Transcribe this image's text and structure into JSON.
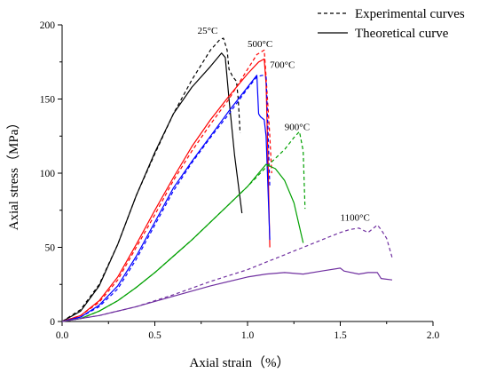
{
  "chart_data": {
    "type": "line",
    "xlabel": "Axial strain（%）",
    "ylabel": "Axial stress（MPa）",
    "xlim": [
      0,
      2.0
    ],
    "ylim": [
      0,
      200
    ],
    "xticks": [
      "0.0",
      "0.5",
      "1.0",
      "1.5",
      "2.0"
    ],
    "yticks": [
      "0",
      "50",
      "100",
      "150",
      "200"
    ],
    "legend_position": "top-right",
    "legend": [
      {
        "label": "Experimental curves",
        "style": "dashed"
      },
      {
        "label": "Theoretical curve",
        "style": "solid"
      }
    ],
    "series": [
      {
        "temperature": "25°C",
        "color": "#000000",
        "style": "dashed",
        "x": [
          0,
          0.1,
          0.2,
          0.3,
          0.4,
          0.5,
          0.6,
          0.7,
          0.8,
          0.85,
          0.87,
          0.89,
          0.9,
          0.92,
          0.94,
          0.95,
          0.96
        ],
        "y": [
          0,
          8,
          25,
          52,
          85,
          113,
          140,
          163,
          183,
          190,
          191,
          183,
          170,
          165,
          162,
          150,
          127
        ]
      },
      {
        "temperature": "25°C",
        "color": "#000000",
        "style": "solid",
        "x": [
          0,
          0.1,
          0.2,
          0.3,
          0.4,
          0.5,
          0.6,
          0.7,
          0.8,
          0.86,
          0.88,
          0.9,
          0.93,
          0.97
        ],
        "y": [
          0,
          7,
          24,
          52,
          85,
          114,
          140,
          158,
          172,
          181,
          178,
          150,
          112,
          73
        ]
      },
      {
        "temperature": "500°C",
        "color": "#ff0000",
        "style": "dashed",
        "x": [
          0,
          0.1,
          0.2,
          0.3,
          0.4,
          0.5,
          0.6,
          0.7,
          0.8,
          0.9,
          1.0,
          1.05,
          1.09,
          1.1,
          1.12,
          1.13
        ],
        "y": [
          0,
          4,
          13,
          28,
          50,
          72,
          95,
          115,
          133,
          150,
          170,
          180,
          183,
          165,
          125,
          100
        ]
      },
      {
        "temperature": "500°C",
        "color": "#ff0000",
        "style": "solid",
        "x": [
          0,
          0.1,
          0.2,
          0.3,
          0.4,
          0.5,
          0.6,
          0.7,
          0.8,
          0.9,
          1.0,
          1.06,
          1.09,
          1.1,
          1.11,
          1.12
        ],
        "y": [
          0,
          4,
          14,
          30,
          52,
          75,
          97,
          118,
          136,
          152,
          167,
          175,
          177,
          160,
          110,
          50
        ]
      },
      {
        "temperature": "700°C",
        "color": "#0000ff",
        "style": "dashed",
        "x": [
          0,
          0.1,
          0.2,
          0.3,
          0.4,
          0.5,
          0.6,
          0.7,
          0.8,
          0.9,
          1.0,
          1.05,
          1.08,
          1.1,
          1.11,
          1.12
        ],
        "y": [
          0,
          3,
          10,
          22,
          42,
          65,
          88,
          107,
          124,
          140,
          157,
          165,
          166,
          165,
          130,
          90
        ]
      },
      {
        "temperature": "700°C",
        "color": "#0000ff",
        "style": "solid",
        "x": [
          0,
          0.1,
          0.2,
          0.3,
          0.4,
          0.5,
          0.6,
          0.7,
          0.8,
          0.9,
          1.0,
          1.05,
          1.06,
          1.07,
          1.09,
          1.1,
          1.11,
          1.12
        ],
        "y": [
          0,
          3,
          11,
          24,
          44,
          67,
          90,
          108,
          125,
          142,
          158,
          166,
          140,
          138,
          136,
          125,
          90,
          55
        ]
      },
      {
        "temperature": "900°C",
        "color": "#00a000",
        "style": "dashed",
        "x": [
          0,
          0.1,
          0.2,
          0.3,
          0.4,
          0.5,
          0.6,
          0.7,
          0.8,
          0.9,
          1.0,
          1.1,
          1.2,
          1.25,
          1.28,
          1.3,
          1.31
        ],
        "y": [
          0,
          2,
          7,
          14,
          23,
          33,
          44,
          55,
          67,
          79,
          91,
          104,
          116,
          124,
          128,
          115,
          76
        ]
      },
      {
        "temperature": "900°C",
        "color": "#00a000",
        "style": "solid",
        "x": [
          0,
          0.1,
          0.2,
          0.3,
          0.4,
          0.5,
          0.6,
          0.7,
          0.8,
          0.9,
          1.0,
          1.06,
          1.1,
          1.15,
          1.2,
          1.25,
          1.3
        ],
        "y": [
          0,
          2,
          7,
          14,
          23,
          33,
          44,
          55,
          67,
          79,
          91,
          100,
          106,
          103,
          95,
          80,
          53
        ]
      },
      {
        "temperature": "1100°C",
        "color": "#7030a0",
        "style": "dashed",
        "x": [
          0,
          0.2,
          0.4,
          0.6,
          0.8,
          1.0,
          1.1,
          1.2,
          1.3,
          1.4,
          1.5,
          1.55,
          1.6,
          1.65,
          1.7,
          1.72,
          1.75,
          1.78
        ],
        "y": [
          0,
          4,
          10,
          18,
          27,
          35,
          40,
          45,
          50,
          55,
          60,
          62,
          63,
          60,
          65,
          62,
          56,
          43
        ]
      },
      {
        "temperature": "1100°C",
        "color": "#7030a0",
        "style": "solid",
        "x": [
          0,
          0.2,
          0.4,
          0.6,
          0.8,
          1.0,
          1.1,
          1.2,
          1.3,
          1.4,
          1.5,
          1.52,
          1.6,
          1.65,
          1.7,
          1.72,
          1.78
        ],
        "y": [
          0,
          4,
          10,
          17,
          24,
          30,
          32,
          33,
          32,
          34,
          36,
          34,
          32,
          33,
          33,
          29,
          28
        ]
      }
    ],
    "annotations": [
      {
        "text": "25°C",
        "x": 0.73,
        "y": 194
      },
      {
        "text": "500°C",
        "x": 1.0,
        "y": 185
      },
      {
        "text": "700°C",
        "x": 1.12,
        "y": 171
      },
      {
        "text": "900°C",
        "x": 1.2,
        "y": 129
      },
      {
        "text": "1100°C",
        "x": 1.5,
        "y": 68
      }
    ]
  }
}
